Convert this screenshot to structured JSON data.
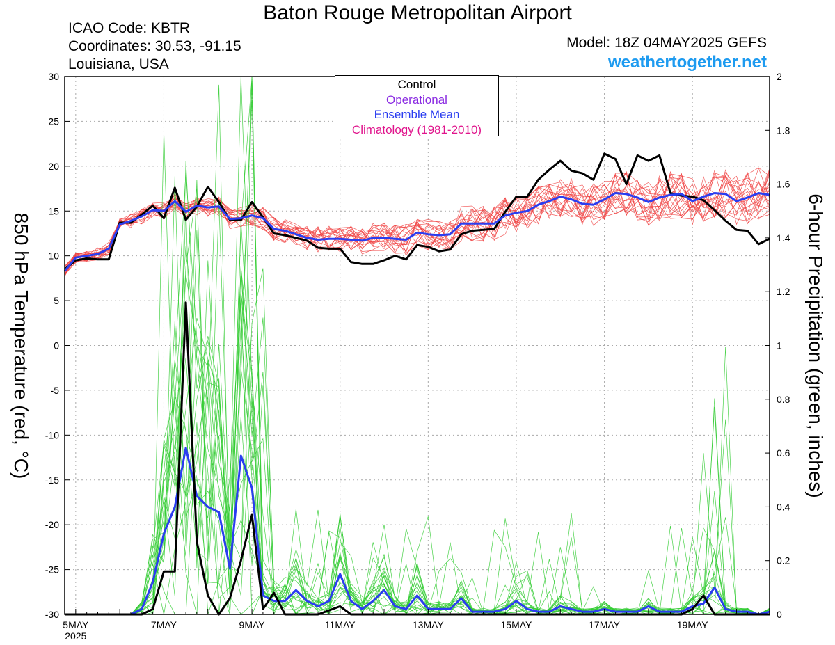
{
  "header": {
    "title": "Baton Rouge Metropolitan Airport",
    "icao": "ICAO Code: KBTR",
    "coords": "Coordinates: 30.53, -91.15",
    "region": "Louisiana, USA",
    "model": "Model: 18Z 04MAY2025 GEFS",
    "site": "weathertogether.net"
  },
  "legend": {
    "control": "Control",
    "operational": "Operational",
    "mean": "Ensemble Mean",
    "climatology": "Climatology (1981-2010)"
  },
  "colors": {
    "control": "#000000",
    "operational": "#8a2be2",
    "mean": "#2a3df0",
    "climatology": "#e0148c",
    "members_temp": "#f04040",
    "members_precip": "#33cc33",
    "site": "#1e9bf0"
  },
  "chart_data": {
    "type": "line",
    "ylabel": "850 hPa Temperature (red, °C)",
    "y2label": "6-hour Precipitation (green, inches)",
    "ylim": [
      -30,
      30
    ],
    "y2lim": [
      0,
      2
    ],
    "yticks": [
      "30",
      "25",
      "20",
      "15",
      "10",
      "5",
      "0",
      "-5",
      "-10",
      "-15",
      "-20",
      "-25",
      "-30"
    ],
    "y2ticks": [
      "2",
      "1.8",
      "1.6",
      "1.4",
      "1.2",
      "1",
      "0.8",
      "0.6",
      "0.4",
      "0.2",
      "0"
    ],
    "xlim": [
      4.75,
      20.75
    ],
    "xticks": [
      {
        "x": 5,
        "label": "5MAY",
        "sub": "2025"
      },
      {
        "x": 7,
        "label": "7MAY"
      },
      {
        "x": 9,
        "label": "9MAY"
      },
      {
        "x": 11,
        "label": "11MAY"
      },
      {
        "x": 13,
        "label": "13MAY"
      },
      {
        "x": 15,
        "label": "15MAY"
      },
      {
        "x": 17,
        "label": "17MAY"
      },
      {
        "x": 19,
        "label": "19MAY"
      }
    ],
    "grid": true,
    "series": [
      {
        "id": "control_temp",
        "axis": "left",
        "x": [
          4.75,
          5,
          5.25,
          5.5,
          5.75,
          6,
          6.25,
          6.5,
          6.75,
          7,
          7.25,
          7.5,
          7.75,
          8,
          8.25,
          8.5,
          8.75,
          9,
          9.25,
          9.5,
          9.75,
          10,
          10.25,
          10.5,
          10.75,
          11,
          11.25,
          11.5,
          11.75,
          12,
          12.25,
          12.5,
          12.75,
          13,
          13.25,
          13.5,
          13.75,
          14,
          14.25,
          14.5,
          14.75,
          15,
          15.25,
          15.5,
          15.75,
          16,
          16.25,
          16.5,
          16.75,
          17,
          17.25,
          17.5,
          17.75,
          18,
          18.25,
          18.5,
          18.75,
          19,
          19.25,
          19.5,
          19.75,
          20,
          20.25,
          20.5,
          20.75
        ],
        "y": [
          8.5,
          9.5,
          9.7,
          9.6,
          9.6,
          13.7,
          13.7,
          14.6,
          15.6,
          14.2,
          17.6,
          14.0,
          15.5,
          17.7,
          16.0,
          14.0,
          14.0,
          16.0,
          14.3,
          12.5,
          12.3,
          12.0,
          11.7,
          10.9,
          10.8,
          10.8,
          9.3,
          9.1,
          9.1,
          9.5,
          10.0,
          9.6,
          11.2,
          11.0,
          10.5,
          10.7,
          12.4,
          12.8,
          12.9,
          13.0,
          14.9,
          16.6,
          16.6,
          18.5,
          19.6,
          20.6,
          19.5,
          19.2,
          18.5,
          21.4,
          20.8,
          18.0,
          21.2,
          20.6,
          21.2,
          17.0,
          16.7,
          16.6,
          16.2,
          15.1,
          13.9,
          12.9,
          12.8,
          11.3,
          11.9
        ]
      },
      {
        "id": "mean_temp",
        "axis": "left",
        "x": [
          4.75,
          5,
          5.25,
          5.5,
          5.75,
          6,
          6.25,
          6.5,
          6.75,
          7,
          7.25,
          7.5,
          7.75,
          8,
          8.25,
          8.5,
          8.75,
          9,
          9.25,
          9.5,
          9.75,
          10,
          10.25,
          10.5,
          10.75,
          11,
          11.25,
          11.5,
          11.75,
          12,
          12.25,
          12.5,
          12.75,
          13,
          13.25,
          13.5,
          13.75,
          14,
          14.25,
          14.5,
          14.75,
          15,
          15.25,
          15.5,
          15.75,
          16,
          16.25,
          16.5,
          16.75,
          17,
          17.25,
          17.5,
          17.75,
          18,
          18.25,
          18.5,
          18.75,
          19,
          19.25,
          19.5,
          19.75,
          20,
          20.25,
          20.5,
          20.75
        ],
        "y": [
          8.3,
          9.8,
          10.0,
          10.2,
          10.8,
          13.5,
          13.9,
          14.4,
          15.1,
          15.0,
          16.1,
          14.9,
          15.6,
          15.4,
          15.5,
          14.1,
          14.2,
          14.5,
          14.2,
          13.0,
          12.8,
          12.4,
          12.0,
          11.8,
          11.9,
          11.9,
          11.8,
          11.7,
          12.0,
          12.0,
          11.9,
          11.8,
          12.6,
          12.4,
          12.3,
          12.4,
          13.6,
          13.6,
          13.6,
          13.6,
          14.5,
          14.8,
          15.0,
          15.7,
          16.1,
          16.6,
          16.3,
          15.8,
          15.7,
          16.3,
          17.0,
          16.9,
          16.5,
          16.0,
          16.5,
          16.8,
          16.9,
          16.1,
          16.6,
          17.0,
          16.9,
          16.1,
          16.5,
          17.0,
          16.8
        ]
      },
      {
        "id": "control_precip",
        "axis": "right",
        "x": [
          4.75,
          6.25,
          6.5,
          6.75,
          7,
          7.25,
          7.5,
          7.75,
          8,
          8.25,
          8.5,
          8.75,
          9,
          9.25,
          9.5,
          9.75,
          10.5,
          11,
          11.25,
          11.75,
          18.5,
          18.75,
          19,
          19.25,
          19.5,
          20.75
        ],
        "y": [
          0,
          0,
          0,
          0.02,
          0.16,
          0.16,
          1.16,
          0.27,
          0.07,
          0,
          0.06,
          0.2,
          0.37,
          0.02,
          0.08,
          0,
          0,
          0.03,
          0,
          0,
          0,
          0,
          0.02,
          0.07,
          0,
          0
        ]
      },
      {
        "id": "mean_precip",
        "axis": "right",
        "x": [
          4.75,
          6.25,
          6.5,
          6.75,
          7,
          7.25,
          7.5,
          7.75,
          8,
          8.25,
          8.5,
          8.75,
          9,
          9.25,
          9.5,
          9.75,
          10,
          10.25,
          10.5,
          10.75,
          11,
          11.25,
          11.5,
          11.75,
          12,
          12.25,
          12.5,
          12.75,
          13,
          13.25,
          13.5,
          13.75,
          14,
          14.25,
          14.5,
          14.75,
          15,
          15.25,
          15.5,
          15.75,
          16,
          16.25,
          16.5,
          16.75,
          17,
          17.25,
          17.5,
          17.75,
          18,
          18.25,
          18.5,
          18.75,
          19,
          19.25,
          19.5,
          19.75,
          20,
          20.25,
          20.5,
          20.75
        ],
        "y": [
          0,
          0,
          0.02,
          0.12,
          0.3,
          0.4,
          0.62,
          0.44,
          0.4,
          0.38,
          0.17,
          0.59,
          0.47,
          0.07,
          0.05,
          0.05,
          0.09,
          0.05,
          0.03,
          0.05,
          0.15,
          0.05,
          0.02,
          0.05,
          0.09,
          0.03,
          0.02,
          0.07,
          0.02,
          0.02,
          0.02,
          0.06,
          0.01,
          0.01,
          0.01,
          0.02,
          0.05,
          0.02,
          0.01,
          0.01,
          0.03,
          0.02,
          0.01,
          0.01,
          0.02,
          0.01,
          0.01,
          0.01,
          0.03,
          0.01,
          0.01,
          0.01,
          0.03,
          0.04,
          0.1,
          0.02,
          0.01,
          0.01,
          0,
          0.01
        ]
      }
    ]
  }
}
